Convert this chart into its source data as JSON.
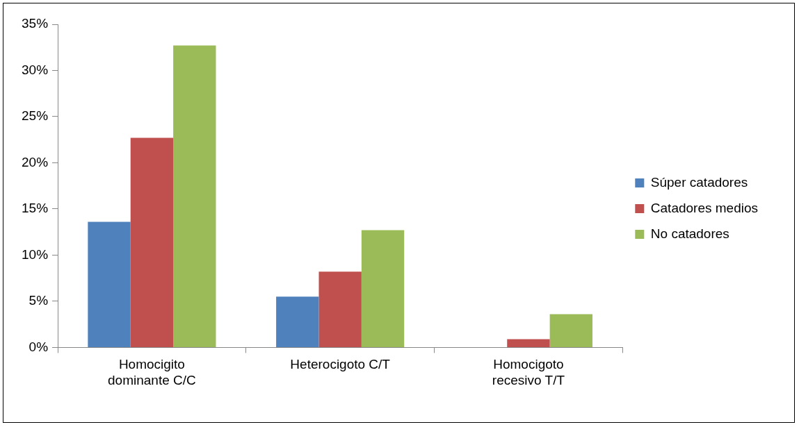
{
  "chart_data": {
    "type": "bar",
    "categories": [
      "Homocigito dominante C/C",
      "Heterocigoto C/T",
      "Homocigoto recesivo T/T"
    ],
    "series": [
      {
        "name": "Súper catadores",
        "color": "#4f81bd",
        "values": [
          13.6,
          5.5,
          0
        ]
      },
      {
        "name": "Catadores medios",
        "color": "#c0504d",
        "values": [
          22.7,
          8.2,
          0.9
        ]
      },
      {
        "name": "No catadores",
        "color": "#9bbb59",
        "values": [
          32.7,
          12.7,
          3.6
        ]
      }
    ],
    "ylim": [
      0,
      35
    ],
    "yticks": [
      {
        "value": 0,
        "label": "0%"
      },
      {
        "value": 5,
        "label": "5%"
      },
      {
        "value": 10,
        "label": "10%"
      },
      {
        "value": 15,
        "label": "15%"
      },
      {
        "value": 20,
        "label": "20%"
      },
      {
        "value": 25,
        "label": "25%"
      },
      {
        "value": 30,
        "label": "30%"
      },
      {
        "value": 35,
        "label": "35%"
      }
    ],
    "grid": false,
    "legend": "right"
  }
}
